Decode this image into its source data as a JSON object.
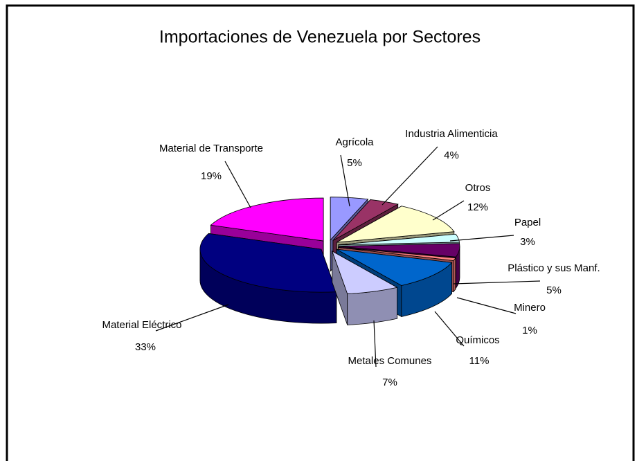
{
  "chart_data": {
    "type": "pie3d",
    "title": "Importaciones de Venezuela por Sectores",
    "categories": [
      "Agrícola",
      "Industria Alimenticia",
      "Otros",
      "Papel",
      "Plástico y sus Manf.",
      "Minero",
      "Químicos",
      "Metales Comunes",
      "Material Eléctrico",
      "Material de Transporte"
    ],
    "values": [
      5,
      4,
      12,
      3,
      5,
      1,
      11,
      7,
      33,
      19
    ],
    "value_labels": [
      "5%",
      "4%",
      "12%",
      "3%",
      "5%",
      "1%",
      "11%",
      "7%",
      "33%",
      "19%"
    ],
    "colors": [
      "#9999ff",
      "#993366",
      "#ffffcc",
      "#ccffff",
      "#660066",
      "#ff8080",
      "#0066cc",
      "#ccccff",
      "#000080",
      "#ff00ff"
    ]
  }
}
